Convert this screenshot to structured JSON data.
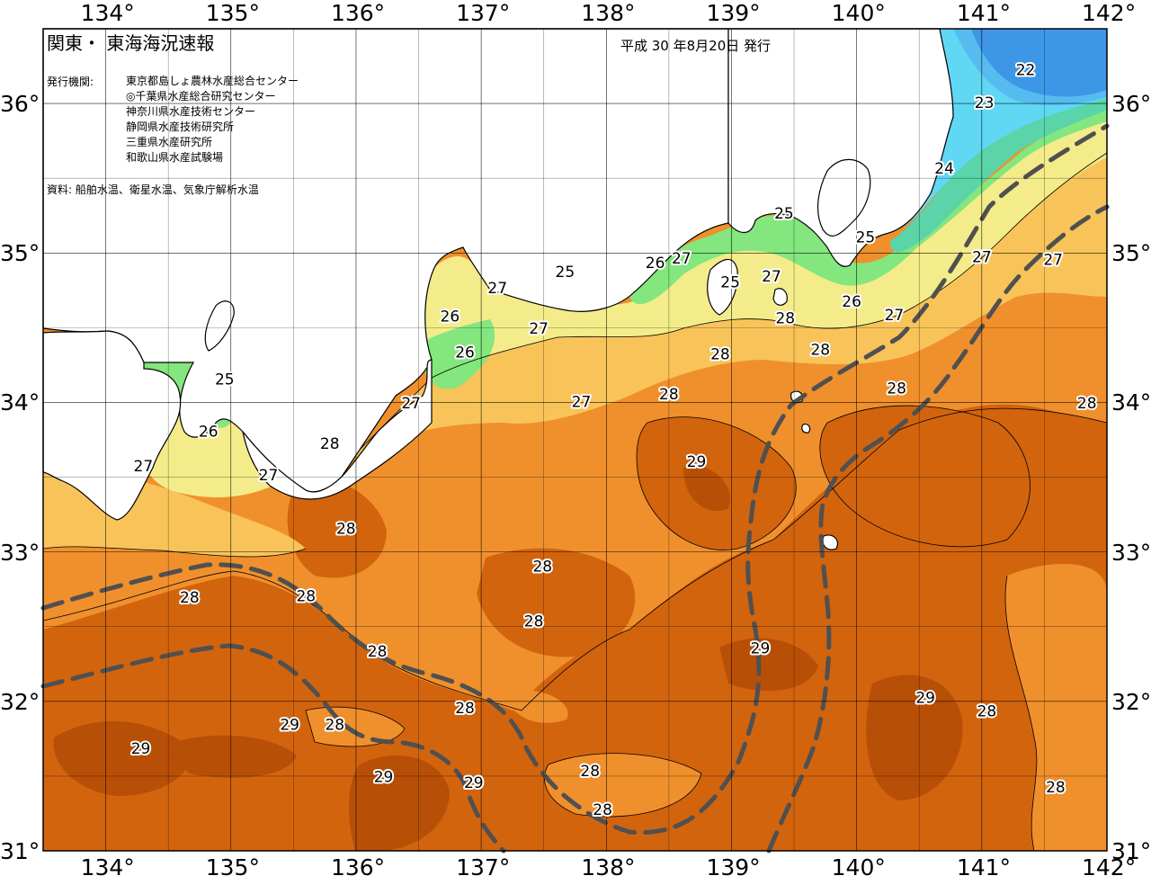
{
  "title": "関東・ 東海海況速報",
  "publish_date": "平成 30 年8月20日 発行",
  "issuer_label": "発行機関:",
  "issuers": [
    "東京都島しょ農林水産総合センター",
    "◎千葉県水産総合研究センター",
    "神奈川県水産技術センター",
    "静岡県水産技術研究所",
    "三重県水産研究所",
    "和歌山県水産試験場"
  ],
  "source": "資料: 船舶水温、衛星水温、気象庁解析水温",
  "axes": {
    "lon_range": [
      133.5,
      142
    ],
    "lat_range": [
      31,
      36.5
    ],
    "lon_ticks": [
      "134°",
      "135°",
      "136°",
      "137°",
      "138°",
      "139°",
      "140°",
      "141°",
      "142°"
    ],
    "lat_ticks": [
      "36°",
      "35°",
      "34°",
      "33°",
      "32°",
      "31°"
    ]
  },
  "colors": {
    "t22": "#2a84de",
    "t23": "#60d8f4",
    "t24": "#5ad4a8",
    "t25": "#84e67e",
    "t26": "#f4ec8a",
    "t27": "#f8c45a",
    "t28": "#f0902c",
    "t29": "#d2640e",
    "t30": "#b84f06",
    "kuroshio": "#505050",
    "land": "#ffffff"
  },
  "isotherm_labels": [
    {
      "text": "22",
      "lon": 141.35,
      "lat": 36.22
    },
    {
      "text": "23",
      "lon": 141.02,
      "lat": 36.0
    },
    {
      "text": "24",
      "lon": 140.7,
      "lat": 35.56
    },
    {
      "text": "25",
      "lon": 139.42,
      "lat": 35.26
    },
    {
      "text": "25",
      "lon": 140.07,
      "lat": 35.1
    },
    {
      "text": "25",
      "lon": 137.67,
      "lat": 34.87
    },
    {
      "text": "25",
      "lon": 138.99,
      "lat": 34.8
    },
    {
      "text": "25",
      "lon": 134.95,
      "lat": 34.15
    },
    {
      "text": "26",
      "lon": 138.39,
      "lat": 34.93
    },
    {
      "text": "26",
      "lon": 136.75,
      "lat": 34.57
    },
    {
      "text": "26",
      "lon": 136.87,
      "lat": 34.33
    },
    {
      "text": "26",
      "lon": 139.96,
      "lat": 34.67
    },
    {
      "text": "26",
      "lon": 134.82,
      "lat": 33.8
    },
    {
      "text": "27",
      "lon": 138.6,
      "lat": 34.96
    },
    {
      "text": "27",
      "lon": 137.13,
      "lat": 34.76
    },
    {
      "text": "27",
      "lon": 137.46,
      "lat": 34.49
    },
    {
      "text": "27",
      "lon": 139.32,
      "lat": 34.84
    },
    {
      "text": "27",
      "lon": 140.3,
      "lat": 34.58
    },
    {
      "text": "27",
      "lon": 141.0,
      "lat": 34.97
    },
    {
      "text": "27",
      "lon": 141.57,
      "lat": 34.95
    },
    {
      "text": "27",
      "lon": 136.44,
      "lat": 33.99
    },
    {
      "text": "27",
      "lon": 137.8,
      "lat": 34.0
    },
    {
      "text": "27",
      "lon": 134.3,
      "lat": 33.57
    },
    {
      "text": "27",
      "lon": 135.3,
      "lat": 33.51
    },
    {
      "text": "28",
      "lon": 139.43,
      "lat": 34.56
    },
    {
      "text": "28",
      "lon": 138.91,
      "lat": 34.32
    },
    {
      "text": "28",
      "lon": 139.71,
      "lat": 34.35
    },
    {
      "text": "28",
      "lon": 138.5,
      "lat": 34.05
    },
    {
      "text": "28",
      "lon": 140.32,
      "lat": 34.09
    },
    {
      "text": "28",
      "lon": 141.84,
      "lat": 33.99
    },
    {
      "text": "28",
      "lon": 135.79,
      "lat": 33.72
    },
    {
      "text": "28",
      "lon": 135.92,
      "lat": 33.15
    },
    {
      "text": "28",
      "lon": 137.49,
      "lat": 32.9
    },
    {
      "text": "28",
      "lon": 134.67,
      "lat": 32.69
    },
    {
      "text": "28",
      "lon": 135.6,
      "lat": 32.7
    },
    {
      "text": "28",
      "lon": 137.42,
      "lat": 32.53
    },
    {
      "text": "28",
      "lon": 136.17,
      "lat": 32.33
    },
    {
      "text": "28",
      "lon": 136.87,
      "lat": 31.95
    },
    {
      "text": "28",
      "lon": 135.83,
      "lat": 31.84
    },
    {
      "text": "28",
      "lon": 137.87,
      "lat": 31.53
    },
    {
      "text": "28",
      "lon": 137.97,
      "lat": 31.27
    },
    {
      "text": "28",
      "lon": 141.04,
      "lat": 31.93
    },
    {
      "text": "28",
      "lon": 141.59,
      "lat": 31.42
    },
    {
      "text": "29",
      "lon": 138.72,
      "lat": 33.6
    },
    {
      "text": "29",
      "lon": 139.23,
      "lat": 32.35
    },
    {
      "text": "29",
      "lon": 140.55,
      "lat": 32.02
    },
    {
      "text": "29",
      "lon": 135.47,
      "lat": 31.84
    },
    {
      "text": "29",
      "lon": 134.28,
      "lat": 31.68
    },
    {
      "text": "29",
      "lon": 136.22,
      "lat": 31.49
    },
    {
      "text": "29",
      "lon": 136.94,
      "lat": 31.45
    }
  ]
}
